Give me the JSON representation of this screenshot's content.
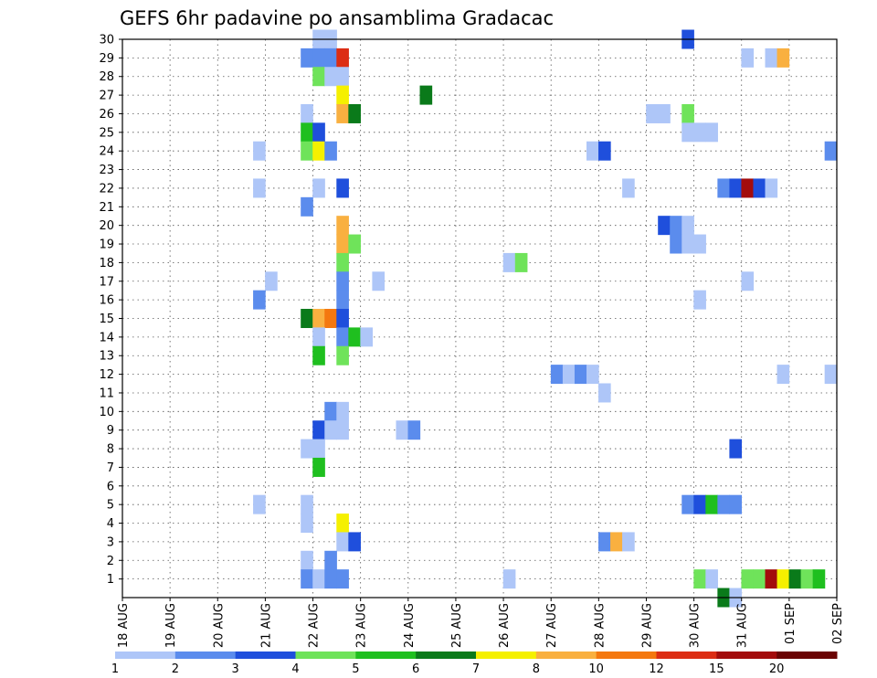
{
  "chart_data": {
    "type": "heatmap",
    "title": "GEFS 6hr padavine po ansamblima Gradacac",
    "xlabel": "",
    "ylabel": "",
    "x_ticks": [
      "18 AUG",
      "19 AUG",
      "20 AUG",
      "21 AUG",
      "22 AUG",
      "23 AUG",
      "24 AUG",
      "25 AUG",
      "26 AUG",
      "27 AUG",
      "28 AUG",
      "29 AUG",
      "30 AUG",
      "31 AUG",
      "01 SEP",
      "02 SEP"
    ],
    "y_ticks": [
      "1",
      "2",
      "3",
      "4",
      "5",
      "6",
      "7",
      "8",
      "9",
      "10",
      "11",
      "12",
      "13",
      "14",
      "15",
      "16",
      "17",
      "18",
      "19",
      "20",
      "21",
      "22",
      "23",
      "24",
      "25",
      "26",
      "27",
      "28",
      "29",
      "30"
    ],
    "xlim": [
      0,
      60
    ],
    "ylim": [
      0,
      30
    ],
    "grid": true,
    "cell_encoding": "[time_step_6h_from_18_AUG_00Z, ensemble_member, colour_class]",
    "colorbar": {
      "labels": [
        "1",
        "2",
        "3",
        "4",
        "5",
        "6",
        "7",
        "8",
        "10",
        "12",
        "15",
        "20"
      ],
      "colors": [
        "#aec6f8",
        "#5b8ced",
        "#1f4fdc",
        "#6fe35a",
        "#1fbf1f",
        "#0a7a1a",
        "#f5f000",
        "#f9b040",
        "#f4780f",
        "#dc2d14",
        "#a30c0c",
        "#6a0404"
      ]
    },
    "cells": [
      [
        16,
        30,
        0
      ],
      [
        17,
        30,
        0
      ],
      [
        47,
        30,
        2
      ],
      [
        15,
        29,
        1
      ],
      [
        16,
        29,
        1
      ],
      [
        17,
        29,
        1
      ],
      [
        18,
        29,
        9
      ],
      [
        52,
        29,
        0
      ],
      [
        54,
        29,
        0
      ],
      [
        55,
        29,
        7
      ],
      [
        16,
        28,
        3
      ],
      [
        17,
        28,
        0
      ],
      [
        18,
        28,
        0
      ],
      [
        18,
        27,
        6
      ],
      [
        25,
        27,
        5
      ],
      [
        15,
        26,
        0
      ],
      [
        18,
        26,
        7
      ],
      [
        19,
        26,
        5
      ],
      [
        44,
        26,
        0
      ],
      [
        45,
        26,
        0
      ],
      [
        47,
        26,
        3
      ],
      [
        15,
        25,
        4
      ],
      [
        16,
        25,
        2
      ],
      [
        47,
        25,
        0
      ],
      [
        48,
        25,
        0
      ],
      [
        49,
        25,
        0
      ],
      [
        11,
        24,
        0
      ],
      [
        15,
        24,
        3
      ],
      [
        16,
        24,
        6
      ],
      [
        17,
        24,
        1
      ],
      [
        39,
        24,
        0
      ],
      [
        40,
        24,
        2
      ],
      [
        59,
        24,
        1
      ],
      [
        11,
        22,
        0
      ],
      [
        16,
        22,
        0
      ],
      [
        18,
        22,
        2
      ],
      [
        42,
        22,
        0
      ],
      [
        50,
        22,
        1
      ],
      [
        51,
        22,
        2
      ],
      [
        52,
        22,
        10
      ],
      [
        53,
        22,
        2
      ],
      [
        54,
        22,
        0
      ],
      [
        15,
        21,
        1
      ],
      [
        18,
        20,
        7
      ],
      [
        45,
        20,
        2
      ],
      [
        46,
        20,
        1
      ],
      [
        47,
        20,
        0
      ],
      [
        18,
        19,
        7
      ],
      [
        19,
        19,
        3
      ],
      [
        46,
        19,
        1
      ],
      [
        47,
        19,
        0
      ],
      [
        48,
        19,
        0
      ],
      [
        18,
        18,
        3
      ],
      [
        32,
        18,
        0
      ],
      [
        33,
        18,
        3
      ],
      [
        12,
        17,
        0
      ],
      [
        18,
        17,
        1
      ],
      [
        21,
        17,
        0
      ],
      [
        52,
        17,
        0
      ],
      [
        11,
        16,
        1
      ],
      [
        18,
        16,
        1
      ],
      [
        48,
        16,
        0
      ],
      [
        15,
        15,
        5
      ],
      [
        16,
        15,
        7
      ],
      [
        17,
        15,
        8
      ],
      [
        18,
        15,
        2
      ],
      [
        16,
        14,
        0
      ],
      [
        18,
        14,
        1
      ],
      [
        19,
        14,
        4
      ],
      [
        20,
        14,
        0
      ],
      [
        16,
        13,
        4
      ],
      [
        18,
        13,
        3
      ],
      [
        36,
        12,
        1
      ],
      [
        37,
        12,
        0
      ],
      [
        38,
        12,
        1
      ],
      [
        39,
        12,
        0
      ],
      [
        55,
        12,
        0
      ],
      [
        59,
        12,
        0
      ],
      [
        40,
        11,
        0
      ],
      [
        17,
        10,
        1
      ],
      [
        18,
        10,
        0
      ],
      [
        16,
        9,
        2
      ],
      [
        17,
        9,
        0
      ],
      [
        18,
        9,
        0
      ],
      [
        23,
        9,
        0
      ],
      [
        24,
        9,
        1
      ],
      [
        15,
        8,
        0
      ],
      [
        16,
        8,
        0
      ],
      [
        51,
        8,
        2
      ],
      [
        16,
        7,
        4
      ],
      [
        11,
        5,
        0
      ],
      [
        15,
        5,
        0
      ],
      [
        47,
        5,
        1
      ],
      [
        48,
        5,
        2
      ],
      [
        49,
        5,
        4
      ],
      [
        50,
        5,
        1
      ],
      [
        51,
        5,
        1
      ],
      [
        15,
        4,
        0
      ],
      [
        18,
        4,
        6
      ],
      [
        18,
        3,
        0
      ],
      [
        19,
        3,
        2
      ],
      [
        40,
        3,
        1
      ],
      [
        41,
        3,
        7
      ],
      [
        42,
        3,
        0
      ],
      [
        15,
        2,
        0
      ],
      [
        17,
        2,
        1
      ],
      [
        15,
        1,
        1
      ],
      [
        16,
        1,
        0
      ],
      [
        17,
        1,
        1
      ],
      [
        18,
        1,
        1
      ],
      [
        32,
        1,
        0
      ],
      [
        48,
        1,
        3
      ],
      [
        49,
        1,
        0
      ],
      [
        52,
        1,
        3
      ],
      [
        53,
        1,
        3
      ],
      [
        54,
        1,
        10
      ],
      [
        55,
        1,
        6
      ],
      [
        56,
        1,
        5
      ],
      [
        57,
        1,
        3
      ],
      [
        58,
        1,
        4
      ],
      [
        50,
        0,
        5
      ],
      [
        51,
        0,
        0
      ]
    ]
  }
}
